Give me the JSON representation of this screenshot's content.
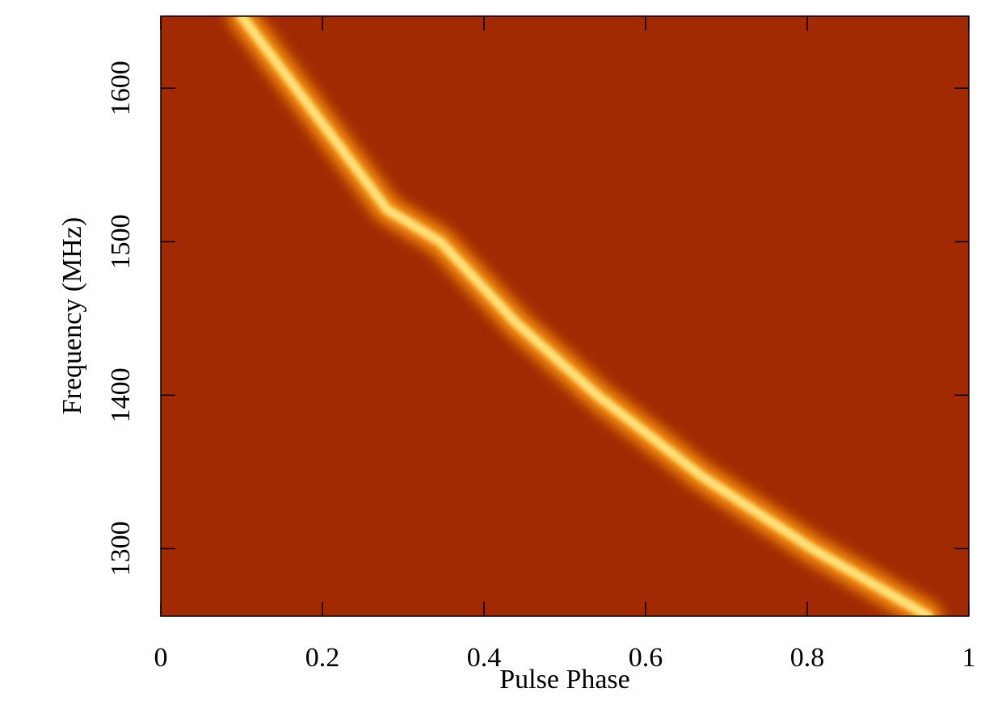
{
  "chart_data": {
    "type": "line",
    "x_label": "Pulse Phase",
    "y_label": "Frequency (MHz)",
    "x": [
      0.1,
      0.19,
      0.28,
      0.346,
      0.44,
      0.54,
      0.67,
      0.806,
      0.95
    ],
    "values": [
      1647,
      1584,
      1521,
      1500,
      1447,
      1400,
      1347,
      1300,
      1256
    ],
    "color": "#ffe27a",
    "glow_color": "#ff9a10",
    "background_color": "#a12a03",
    "xlim": [
      0,
      1
    ],
    "xticks": [
      0,
      0.2,
      0.4,
      0.6,
      0.8,
      1
    ],
    "ylim": [
      1256,
      1647
    ],
    "yticks": [
      1300,
      1400,
      1500,
      1600
    ]
  }
}
